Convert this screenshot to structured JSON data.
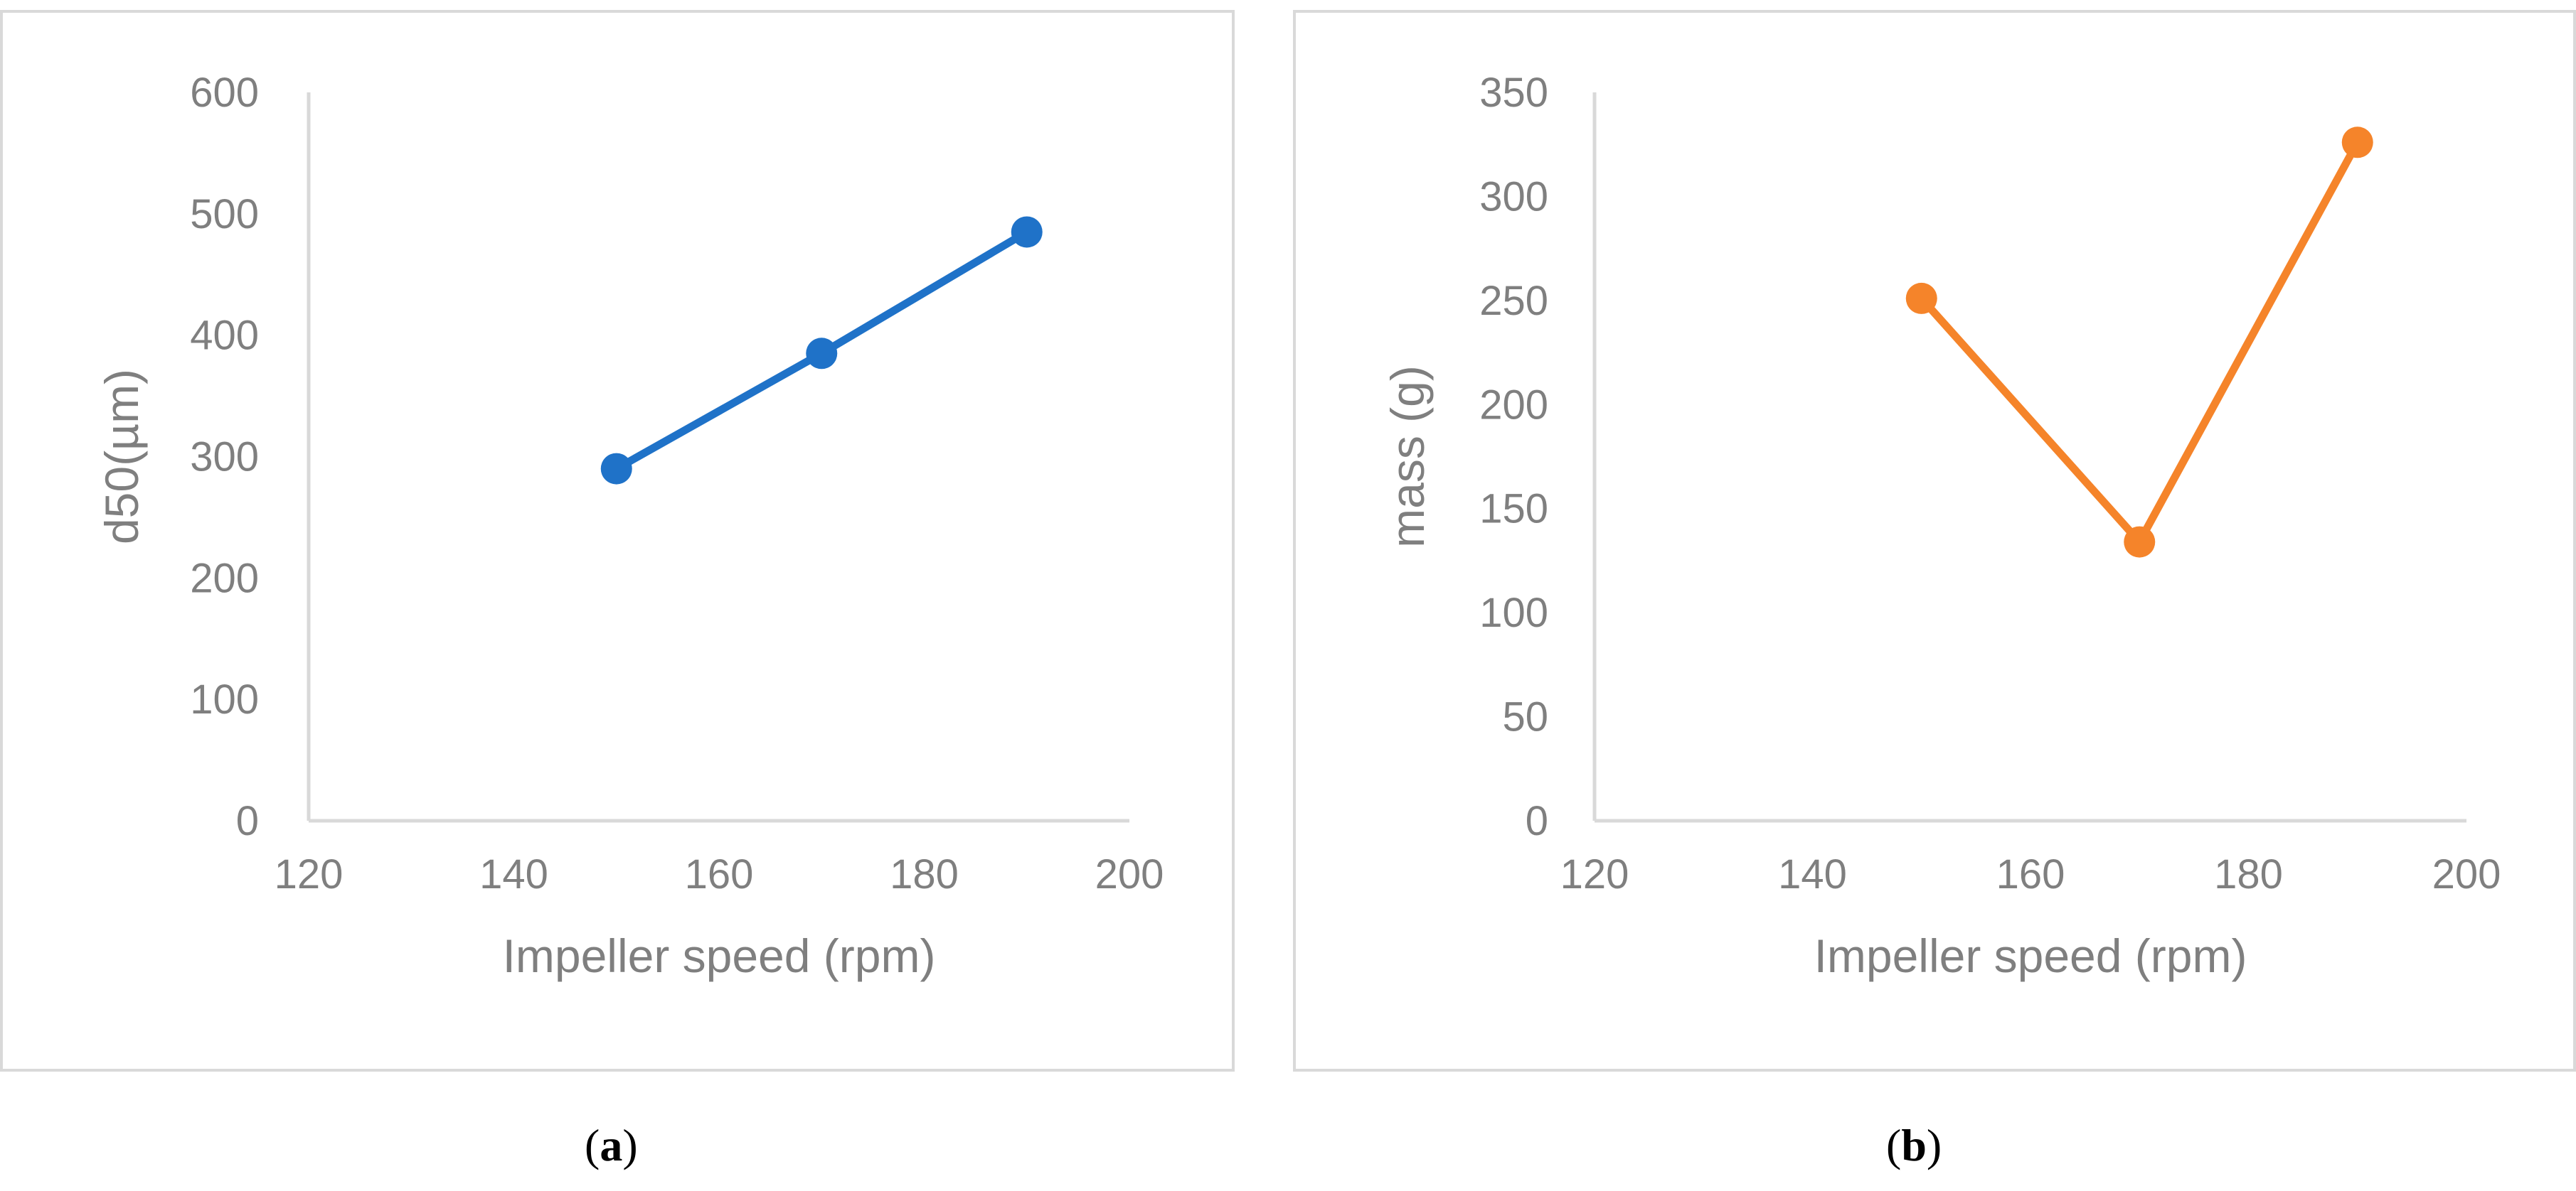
{
  "chart_data": [
    {
      "type": "line",
      "panel_label": "a",
      "xlabel": "Impeller speed (rpm)",
      "ylabel": "d50(µm)",
      "xlim": [
        120,
        200
      ],
      "ylim": [
        0,
        600
      ],
      "xticks": [
        "120",
        "140",
        "160",
        "180",
        "200"
      ],
      "yticks": [
        "0",
        "100",
        "200",
        "300",
        "400",
        "500",
        "600"
      ],
      "grid": false,
      "legend": "none",
      "series": [
        {
          "color": "#1f72c8",
          "x": [
            150,
            170,
            190
          ],
          "y": [
            290,
            385,
            485
          ]
        }
      ]
    },
    {
      "type": "line",
      "panel_label": "b",
      "xlabel": "Impeller speed (rpm)",
      "ylabel": "mass (g)",
      "xlim": [
        120,
        200
      ],
      "ylim": [
        0,
        350
      ],
      "xticks": [
        "120",
        "140",
        "160",
        "180",
        "200"
      ],
      "yticks": [
        "0",
        "50",
        "100",
        "150",
        "200",
        "250",
        "300",
        "350"
      ],
      "grid": false,
      "legend": "none",
      "series": [
        {
          "color": "#f5842a",
          "x": [
            150,
            170,
            190
          ],
          "y": [
            251,
            134,
            326
          ]
        }
      ]
    }
  ]
}
